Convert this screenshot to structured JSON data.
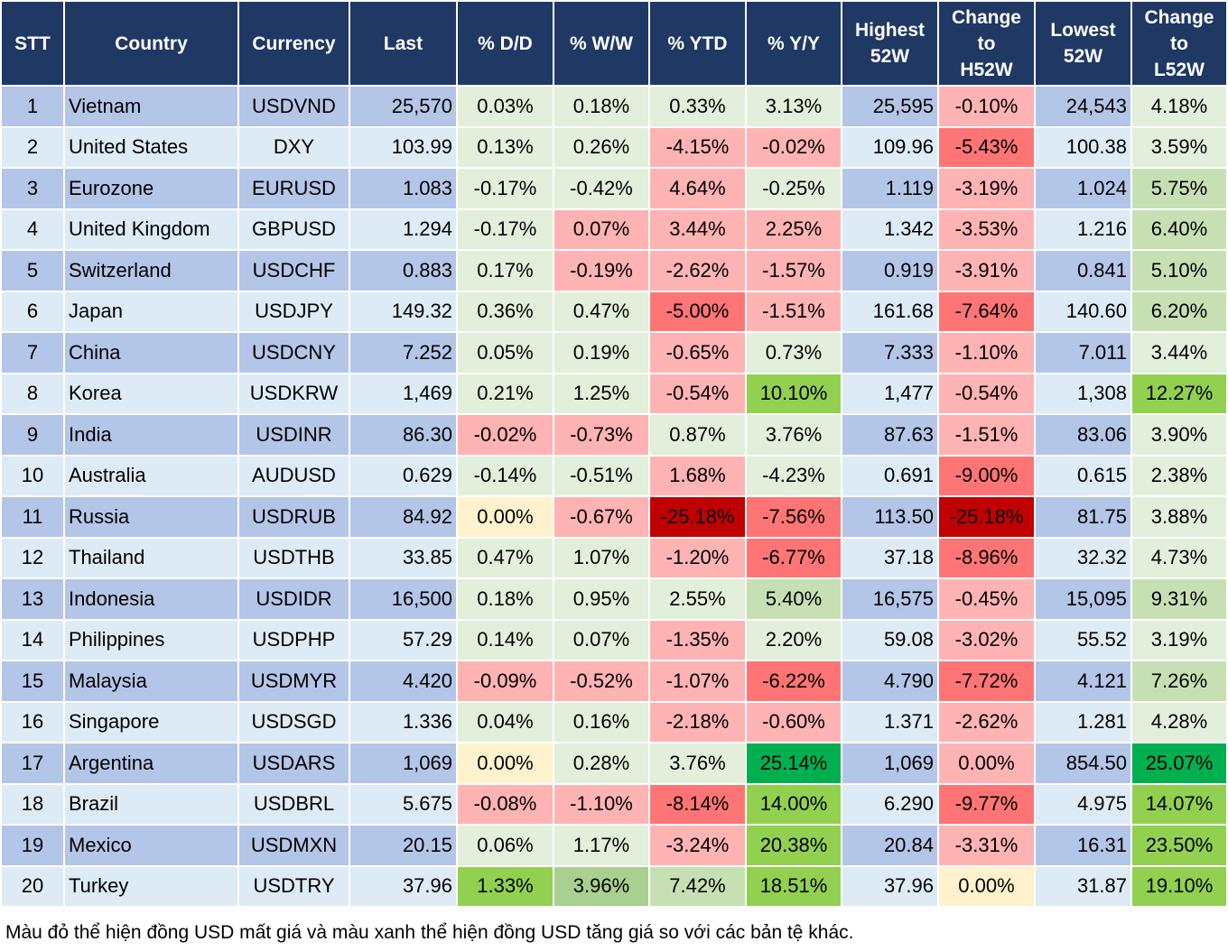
{
  "headers": [
    "STT",
    "Country",
    "Currency",
    "Last",
    "% D/D",
    "% W/W",
    "% YTD",
    "% Y/Y",
    "Highest 52W",
    "Change to H52W",
    "Lowest 52W",
    "Change to L52W"
  ],
  "palette": {
    "lg": "#e2efda",
    "pr": "#ffb3b3",
    "rd": "#ff7575",
    "dr": "#c00000",
    "g": "#92d050",
    "mg": "#c6e0b4",
    "dg": "#00b050",
    "y": "#fff2cc",
    "g2": "#a9d08e"
  },
  "rows": [
    [
      "1",
      "Vietnam",
      "USDVND",
      "25,570",
      "0.03%",
      "0.18%",
      "0.33%",
      "3.13%",
      "25,595",
      "-0.10%",
      "24,543",
      "4.18%"
    ],
    [
      "2",
      "United States",
      "DXY",
      "103.99",
      "0.13%",
      "0.26%",
      "-4.15%",
      "-0.02%",
      "109.96",
      "-5.43%",
      "100.38",
      "3.59%"
    ],
    [
      "3",
      "Eurozone",
      "EURUSD",
      "1.083",
      "-0.17%",
      "-0.42%",
      "4.64%",
      "-0.25%",
      "1.119",
      "-3.19%",
      "1.024",
      "5.75%"
    ],
    [
      "4",
      "United Kingdom",
      "GBPUSD",
      "1.294",
      "-0.17%",
      "0.07%",
      "3.44%",
      "2.25%",
      "1.342",
      "-3.53%",
      "1.216",
      "6.40%"
    ],
    [
      "5",
      "Switzerland",
      "USDCHF",
      "0.883",
      "0.17%",
      "-0.19%",
      "-2.62%",
      "-1.57%",
      "0.919",
      "-3.91%",
      "0.841",
      "5.10%"
    ],
    [
      "6",
      "Japan",
      "USDJPY",
      "149.32",
      "0.36%",
      "0.47%",
      "-5.00%",
      "-1.51%",
      "161.68",
      "-7.64%",
      "140.60",
      "6.20%"
    ],
    [
      "7",
      "China",
      "USDCNY",
      "7.252",
      "0.05%",
      "0.19%",
      "-0.65%",
      "0.73%",
      "7.333",
      "-1.10%",
      "7.011",
      "3.44%"
    ],
    [
      "8",
      "Korea",
      "USDKRW",
      "1,469",
      "0.21%",
      "1.25%",
      "-0.54%",
      "10.10%",
      "1,477",
      "-0.54%",
      "1,308",
      "12.27%"
    ],
    [
      "9",
      "India",
      "USDINR",
      "86.30",
      "-0.02%",
      "-0.73%",
      "0.87%",
      "3.76%",
      "87.63",
      "-1.51%",
      "83.06",
      "3.90%"
    ],
    [
      "10",
      "Australia",
      "AUDUSD",
      "0.629",
      "-0.14%",
      "-0.51%",
      "1.68%",
      "-4.23%",
      "0.691",
      "-9.00%",
      "0.615",
      "2.38%"
    ],
    [
      "11",
      "Russia",
      "USDRUB",
      "84.92",
      "0.00%",
      "-0.67%",
      "-25.18%",
      "-7.56%",
      "113.50",
      "-25.18%",
      "81.75",
      "3.88%"
    ],
    [
      "12",
      "Thailand",
      "USDTHB",
      "33.85",
      "0.47%",
      "1.07%",
      "-1.20%",
      "-6.77%",
      "37.18",
      "-8.96%",
      "32.32",
      "4.73%"
    ],
    [
      "13",
      "Indonesia",
      "USDIDR",
      "16,500",
      "0.18%",
      "0.95%",
      "2.55%",
      "5.40%",
      "16,575",
      "-0.45%",
      "15,095",
      "9.31%"
    ],
    [
      "14",
      "Philippines",
      "USDPHP",
      "57.29",
      "0.14%",
      "0.07%",
      "-1.35%",
      "2.20%",
      "59.08",
      "-3.02%",
      "55.52",
      "3.19%"
    ],
    [
      "15",
      "Malaysia",
      "USDMYR",
      "4.420",
      "-0.09%",
      "-0.52%",
      "-1.07%",
      "-6.22%",
      "4.790",
      "-7.72%",
      "4.121",
      "7.26%"
    ],
    [
      "16",
      "Singapore",
      "USDSGD",
      "1.336",
      "0.04%",
      "0.16%",
      "-2.18%",
      "-0.60%",
      "1.371",
      "-2.62%",
      "1.281",
      "4.28%"
    ],
    [
      "17",
      "Argentina",
      "USDARS",
      "1,069",
      "0.00%",
      "0.28%",
      "3.76%",
      "25.14%",
      "1,069",
      "0.00%",
      "854.50",
      "25.07%"
    ],
    [
      "18",
      "Brazil",
      "USDBRL",
      "5.675",
      "-0.08%",
      "-1.10%",
      "-8.14%",
      "14.00%",
      "6.290",
      "-9.77%",
      "4.975",
      "14.07%"
    ],
    [
      "19",
      "Mexico",
      "USDMXN",
      "20.15",
      "0.06%",
      "1.17%",
      "-3.24%",
      "20.38%",
      "20.84",
      "-3.31%",
      "16.31",
      "23.50%"
    ],
    [
      "20",
      "Turkey",
      "USDTRY",
      "37.96",
      "1.33%",
      "3.96%",
      "7.42%",
      "18.51%",
      "37.96",
      "0.00%",
      "31.87",
      "19.10%"
    ]
  ],
  "cell_colors": [
    [
      "lg",
      "lg",
      "lg",
      "lg",
      "pr",
      "lg"
    ],
    [
      "lg",
      "lg",
      "pr",
      "pr",
      "rd",
      "lg"
    ],
    [
      "lg",
      "lg",
      "pr",
      "lg",
      "pr",
      "mg"
    ],
    [
      "lg",
      "pr",
      "pr",
      "pr",
      "pr",
      "mg"
    ],
    [
      "lg",
      "pr",
      "pr",
      "pr",
      "pr",
      "mg"
    ],
    [
      "lg",
      "lg",
      "rd",
      "pr",
      "rd",
      "mg"
    ],
    [
      "lg",
      "lg",
      "pr",
      "lg",
      "pr",
      "lg"
    ],
    [
      "lg",
      "lg",
      "pr",
      "g",
      "pr",
      "g"
    ],
    [
      "pr",
      "pr",
      "lg",
      "lg",
      "pr",
      "lg"
    ],
    [
      "lg",
      "lg",
      "pr",
      "lg",
      "rd",
      "lg"
    ],
    [
      "y",
      "pr",
      "dr",
      "rd",
      "dr",
      "lg"
    ],
    [
      "lg",
      "lg",
      "pr",
      "rd",
      "rd",
      "lg"
    ],
    [
      "lg",
      "lg",
      "lg",
      "mg",
      "pr",
      "mg"
    ],
    [
      "lg",
      "lg",
      "pr",
      "lg",
      "pr",
      "lg"
    ],
    [
      "pr",
      "pr",
      "pr",
      "rd",
      "rd",
      "mg"
    ],
    [
      "lg",
      "lg",
      "pr",
      "pr",
      "pr",
      "lg"
    ],
    [
      "y",
      "lg",
      "lg",
      "dg",
      "pr",
      "dg"
    ],
    [
      "pr",
      "pr",
      "rd",
      "g",
      "rd",
      "g"
    ],
    [
      "lg",
      "lg",
      "pr",
      "g",
      "pr",
      "g"
    ],
    [
      "g",
      "g2",
      "mg",
      "g",
      "y",
      "g"
    ]
  ],
  "footer": "Màu đỏ thể hiện đồng USD mất giá và màu xanh thể hiện đồng USD tăng giá so với các bản tệ khác."
}
